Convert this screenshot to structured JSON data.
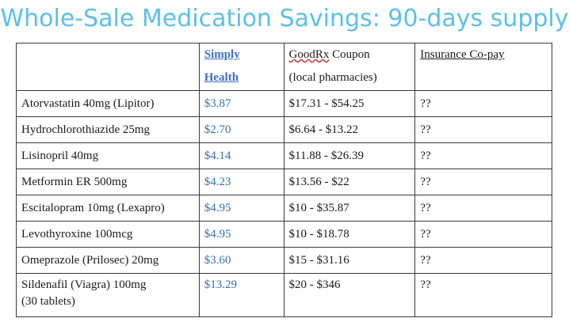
{
  "title": "Whole-Sale Medication Savings: 90-days supply",
  "table": {
    "headers": {
      "col1": "",
      "col2_line1": "Simply",
      "col2_line2": "Health",
      "col3_brand": "GoodRx",
      "col3_rest": " Coupon",
      "col3_line2": "(local pharmacies)",
      "col4": "Insurance Co-pay"
    },
    "rows": [
      {
        "drug": "Atorvastatin 40mg (Lipitor)",
        "drug_line2": "",
        "simply": "$3.87",
        "goodrx": "$17.31 - $54.25",
        "copay": "??"
      },
      {
        "drug": "Hydrochlorothiazide 25mg",
        "drug_line2": "",
        "simply": "$2.70",
        "goodrx": "$6.64 - $13.22",
        "copay": "??"
      },
      {
        "drug": "Lisinopril 40mg",
        "drug_line2": "",
        "simply": "$4.14",
        "goodrx": "$11.88 - $26.39",
        "copay": "??"
      },
      {
        "drug": "Metformin ER 500mg",
        "drug_line2": "",
        "simply": "$4.23",
        "goodrx": "$13.56 - $22",
        "copay": "??"
      },
      {
        "drug": "Escitalopram 10mg (Lexapro)",
        "drug_line2": "",
        "simply": "$4.95",
        "goodrx": "$10 - $35.87",
        "copay": "??"
      },
      {
        "drug": "Levothyroxine 100mcg",
        "drug_line2": "",
        "simply": "$4.95",
        "goodrx": "$10 - $18.78",
        "copay": "??"
      },
      {
        "drug": "Omeprazole (Prilosec) 20mg",
        "drug_line2": "",
        "simply": "$3.60",
        "goodrx": "$15 - $31.16",
        "copay": "??"
      },
      {
        "drug": "Sildenafil (Viagra) 100mg",
        "drug_line2": "(30 tablets)",
        "simply": "$13.29",
        "goodrx": "$20 - $346",
        "copay": "??"
      }
    ]
  },
  "colors": {
    "title": "#5bc0eb",
    "price_blue": "#2f6fb2",
    "link_blue": "#3b6fc4"
  }
}
